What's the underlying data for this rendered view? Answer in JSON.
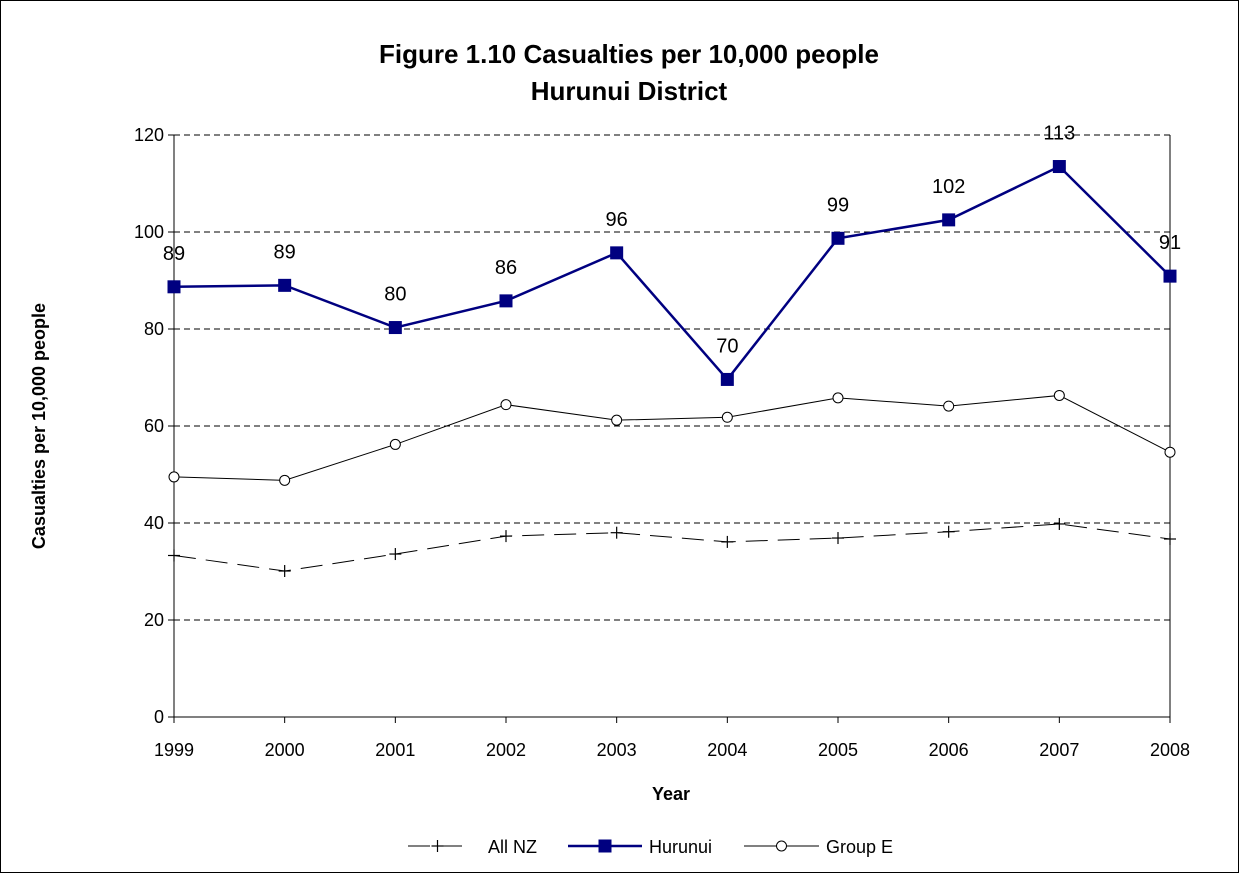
{
  "chart_data": {
    "type": "line",
    "title": "Figure 1.10 Casualties per 10,000 people",
    "subtitle": "Hurunui District",
    "xlabel": "Year",
    "ylabel": "Casualties per 10,000 people",
    "ylim": [
      0,
      120
    ],
    "yticks": [
      0,
      20,
      40,
      60,
      80,
      100,
      120
    ],
    "categories": [
      "1999",
      "2000",
      "2001",
      "2002",
      "2003",
      "2004",
      "2005",
      "2006",
      "2007",
      "2008"
    ],
    "grid": "horizontal dashed",
    "legend_position": "bottom",
    "series": [
      {
        "name": "All NZ",
        "values": [
          33.3,
          30.1,
          33.6,
          37.3,
          38.0,
          36.1,
          36.9,
          38.2,
          39.8,
          36.7
        ],
        "color": "#000000",
        "style": "dashed",
        "marker": "plus"
      },
      {
        "name": "Hurunui",
        "values": [
          88.7,
          89.0,
          80.3,
          85.8,
          95.7,
          69.6,
          98.7,
          102.5,
          113.5,
          90.9
        ],
        "data_labels": [
          "89",
          "89",
          "80",
          "86",
          "96",
          "70",
          "99",
          "102",
          "113",
          "91"
        ],
        "color": "#000080",
        "style": "solid",
        "marker": "square"
      },
      {
        "name": "Group E",
        "values": [
          49.5,
          48.8,
          56.2,
          64.4,
          61.2,
          61.8,
          65.8,
          64.1,
          66.3,
          54.6
        ],
        "color": "#000000",
        "style": "solid",
        "marker": "circle"
      }
    ]
  }
}
